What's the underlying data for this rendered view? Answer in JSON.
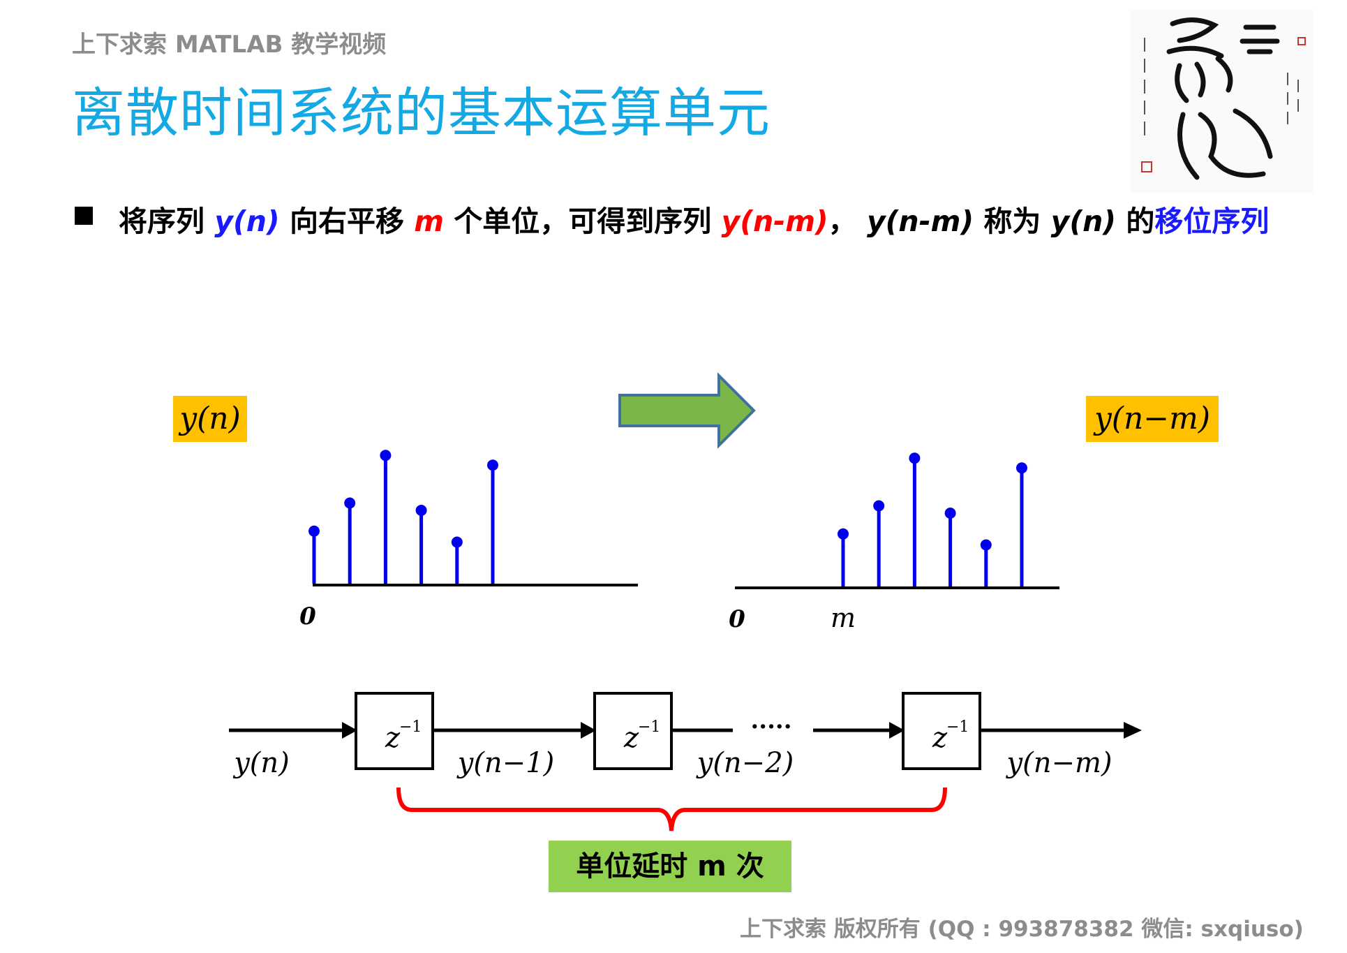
{
  "header": {
    "subtitle": "上下求索 MATLAB 教学视频",
    "title": "离散时间系统的基本运算单元"
  },
  "bullet": {
    "p1": "将序列 ",
    "yn": "y(n)",
    "p2": " 向右平移 ",
    "m": "m",
    "p3": " 个单位，可得到序列 ",
    "ynm": "y(n-m)",
    "p4": "，  ",
    "ynm2": "y(n-m)",
    "p5": " 称为 ",
    "yn2": "y(n)",
    "p6": " 的",
    "highlight": "移位序列"
  },
  "left_plot": {
    "label": "y(n)",
    "origin_label": "0",
    "values": [
      4.3,
      6.6,
      10.5,
      6.0,
      3.4,
      9.7
    ]
  },
  "right_plot": {
    "label": "y(n−m)",
    "origin_label": "0",
    "m_label": "m",
    "values": [
      4.3,
      6.6,
      10.5,
      6.0,
      3.4,
      9.7
    ]
  },
  "delay_chain": {
    "input_label": "y(n)",
    "z_base": "z",
    "z_exp": "−1",
    "sig1": "y(n−1)",
    "sig2": "y(n−2)",
    "output_label": "y(n−m)",
    "dots": "·····",
    "brace_label": "单位延时 m 次"
  },
  "colors": {
    "title": "#14a9e3",
    "stem": "#0000ee",
    "label_bg": "#ffc000",
    "arrow_fill": "#7ab648",
    "arrow_stroke": "#41719c",
    "brace": "#ff0000",
    "delay_bg": "#92d050"
  },
  "logo": {
    "seal_text": "上下求索"
  },
  "footer": {
    "text": "上下求索  版权所有  (QQ : 993878382   微信: sxqiuso)"
  }
}
